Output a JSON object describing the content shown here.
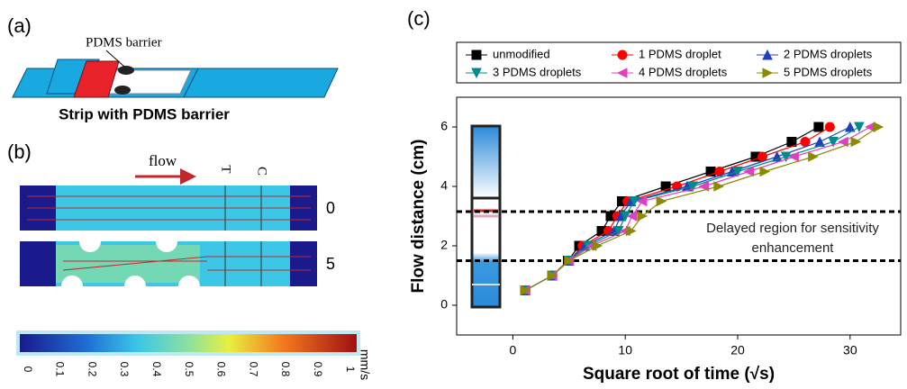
{
  "panel_a": {
    "label": "(a)",
    "callout": "PDMS barrier",
    "caption": "Strip with PDMS barrier"
  },
  "panel_b": {
    "label": "(b)",
    "flow": "flow",
    "test_line": "T",
    "control_line": "C",
    "row_labels": [
      "0",
      "5"
    ]
  },
  "colorbar": {
    "ticks": [
      0,
      0.1,
      0.2,
      0.3,
      0.4,
      0.5,
      0.6,
      0.7,
      0.8,
      0.9,
      1
    ],
    "unit": "mm/s"
  },
  "panel_c": {
    "label": "(c)"
  },
  "chart_data": {
    "type": "line",
    "xlabel": "Square root of time (√s)",
    "ylabel": "Flow distance (cm)",
    "xlim": [
      -5,
      34.5
    ],
    "ylim": [
      -1,
      7
    ],
    "xticks": [
      0,
      10,
      20,
      30
    ],
    "yticks": [
      0,
      2,
      4,
      6
    ],
    "hlines": [
      3.15,
      1.5
    ],
    "annotation": [
      "Delayed region for sensitivity",
      "enhancement"
    ],
    "series": [
      {
        "name": "unmodified",
        "color": "#000000",
        "marker": "square",
        "x": [
          1.1,
          3.5,
          4.9,
          5.9,
          7.9,
          8.7,
          9.7,
          13.6,
          17.6,
          21.6,
          24.8,
          27.2
        ],
        "values": [
          0.5,
          1,
          1.5,
          2,
          2.5,
          3,
          3.5,
          4,
          4.5,
          5,
          5.5,
          6
        ]
      },
      {
        "name": "1 PDMS droplet",
        "color": "#ff0000",
        "marker": "circle",
        "x": [
          1.1,
          3.5,
          5,
          6.2,
          8.5,
          9.3,
          10.2,
          14.6,
          18.4,
          22.2,
          26,
          28.2
        ],
        "values": [
          0.5,
          1,
          1.5,
          2,
          2.5,
          3,
          3.5,
          4,
          4.5,
          5,
          5.5,
          6
        ]
      },
      {
        "name": "2 PDMS droplets",
        "color": "#1f3fbf",
        "marker": "triangle-up",
        "x": [
          1.1,
          3.5,
          5,
          6.4,
          9,
          9.6,
          10.5,
          15.5,
          19.5,
          23.5,
          27.3,
          30
        ],
        "values": [
          0.5,
          1,
          1.5,
          2,
          2.5,
          3,
          3.5,
          4,
          4.5,
          5,
          5.5,
          6
        ]
      },
      {
        "name": "3 PDMS droplets",
        "color": "#008b8b",
        "marker": "triangle-down",
        "x": [
          1.1,
          3.5,
          5,
          6.7,
          9.4,
          10,
          10.8,
          16,
          20,
          24.3,
          28.5,
          30.8
        ],
        "values": [
          0.5,
          1,
          1.5,
          2,
          2.5,
          3,
          3.5,
          4,
          4.5,
          5,
          5.5,
          6
        ]
      },
      {
        "name": "4 PDMS droplets",
        "color": "#e040c0",
        "marker": "triangle-left",
        "x": [
          1.1,
          3.5,
          5,
          7,
          10,
          10.6,
          11.5,
          17,
          21,
          25,
          29.4,
          31.8
        ],
        "values": [
          0.5,
          1,
          1.5,
          2,
          2.5,
          3,
          3.5,
          4,
          4.5,
          5,
          5.5,
          6
        ]
      },
      {
        "name": "5 PDMS droplets",
        "color": "#8b8b00",
        "marker": "triangle-right",
        "x": [
          1.1,
          3.5,
          5,
          7.5,
          10.5,
          11.5,
          13.2,
          18.3,
          22.4,
          26.7,
          30.5,
          32.5
        ],
        "values": [
          0.5,
          1,
          1.5,
          2,
          2.5,
          3,
          3.5,
          4,
          4.5,
          5,
          5.5,
          6
        ]
      }
    ]
  }
}
